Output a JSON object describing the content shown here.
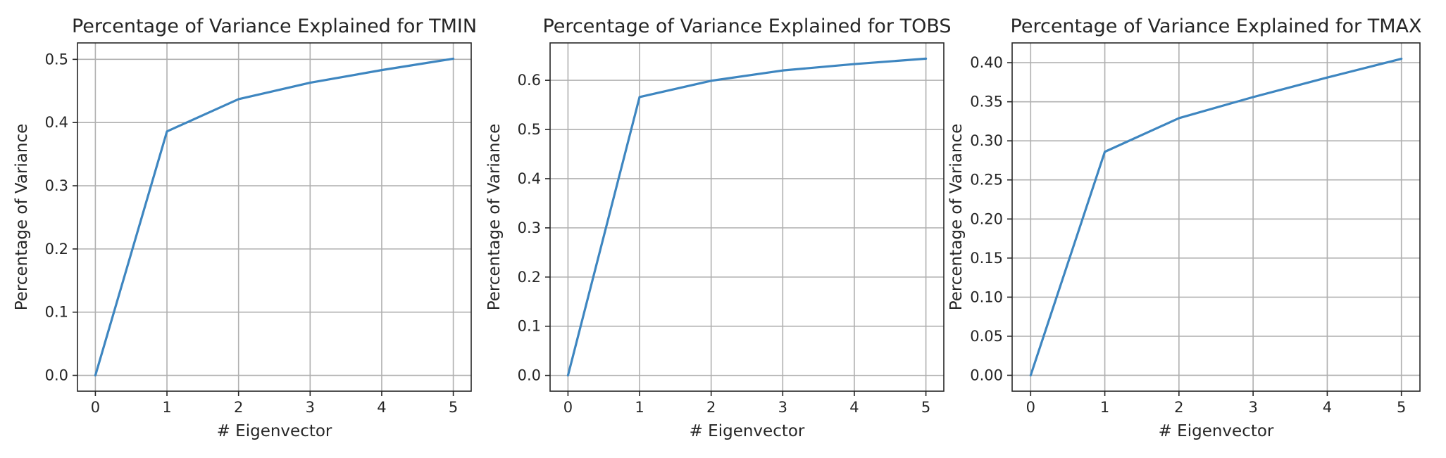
{
  "chart_data": [
    {
      "type": "line",
      "title": "Percentage of Variance Explained for TMIN",
      "xlabel": "# Eigenvector",
      "ylabel": "Percentage of Variance",
      "x": [
        0,
        1,
        2,
        3,
        4,
        5
      ],
      "series": [
        {
          "values": [
            0.0,
            0.386,
            0.437,
            0.463,
            0.483,
            0.501
          ],
          "color": "#3e86c0"
        }
      ],
      "xticks": [
        "0",
        "1",
        "2",
        "3",
        "4",
        "5"
      ],
      "yticks": [
        "0.0",
        "0.1",
        "0.2",
        "0.3",
        "0.4",
        "0.5"
      ],
      "xlim": [
        -0.25,
        5.25
      ],
      "ylim": [
        -0.025,
        0.526
      ],
      "grid": true
    },
    {
      "type": "line",
      "title": "Percentage of Variance Explained for TOBS",
      "xlabel": "# Eigenvector",
      "ylabel": "Percentage of Variance",
      "x": [
        0,
        1,
        2,
        3,
        4,
        5
      ],
      "series": [
        {
          "values": [
            0.0,
            0.566,
            0.599,
            0.62,
            0.633,
            0.644
          ],
          "color": "#3e86c0"
        }
      ],
      "xticks": [
        "0",
        "1",
        "2",
        "3",
        "4",
        "5"
      ],
      "yticks": [
        "0.0",
        "0.1",
        "0.2",
        "0.3",
        "0.4",
        "0.5",
        "0.6"
      ],
      "xlim": [
        -0.25,
        5.25
      ],
      "ylim": [
        -0.032,
        0.676
      ],
      "grid": true
    },
    {
      "type": "line",
      "title": "Percentage of Variance Explained for TMAX",
      "xlabel": "# Eigenvector",
      "ylabel": "Percentage of Variance",
      "x": [
        0,
        1,
        2,
        3,
        4,
        5
      ],
      "series": [
        {
          "values": [
            0.0,
            0.286,
            0.329,
            0.356,
            0.381,
            0.405
          ],
          "color": "#3e86c0"
        }
      ],
      "xticks": [
        "0",
        "1",
        "2",
        "3",
        "4",
        "5"
      ],
      "yticks": [
        "0.00",
        "0.05",
        "0.10",
        "0.15",
        "0.20",
        "0.25",
        "0.30",
        "0.35",
        "0.40"
      ],
      "xlim": [
        -0.25,
        5.25
      ],
      "ylim": [
        -0.0203,
        0.4253
      ],
      "grid": true
    }
  ]
}
